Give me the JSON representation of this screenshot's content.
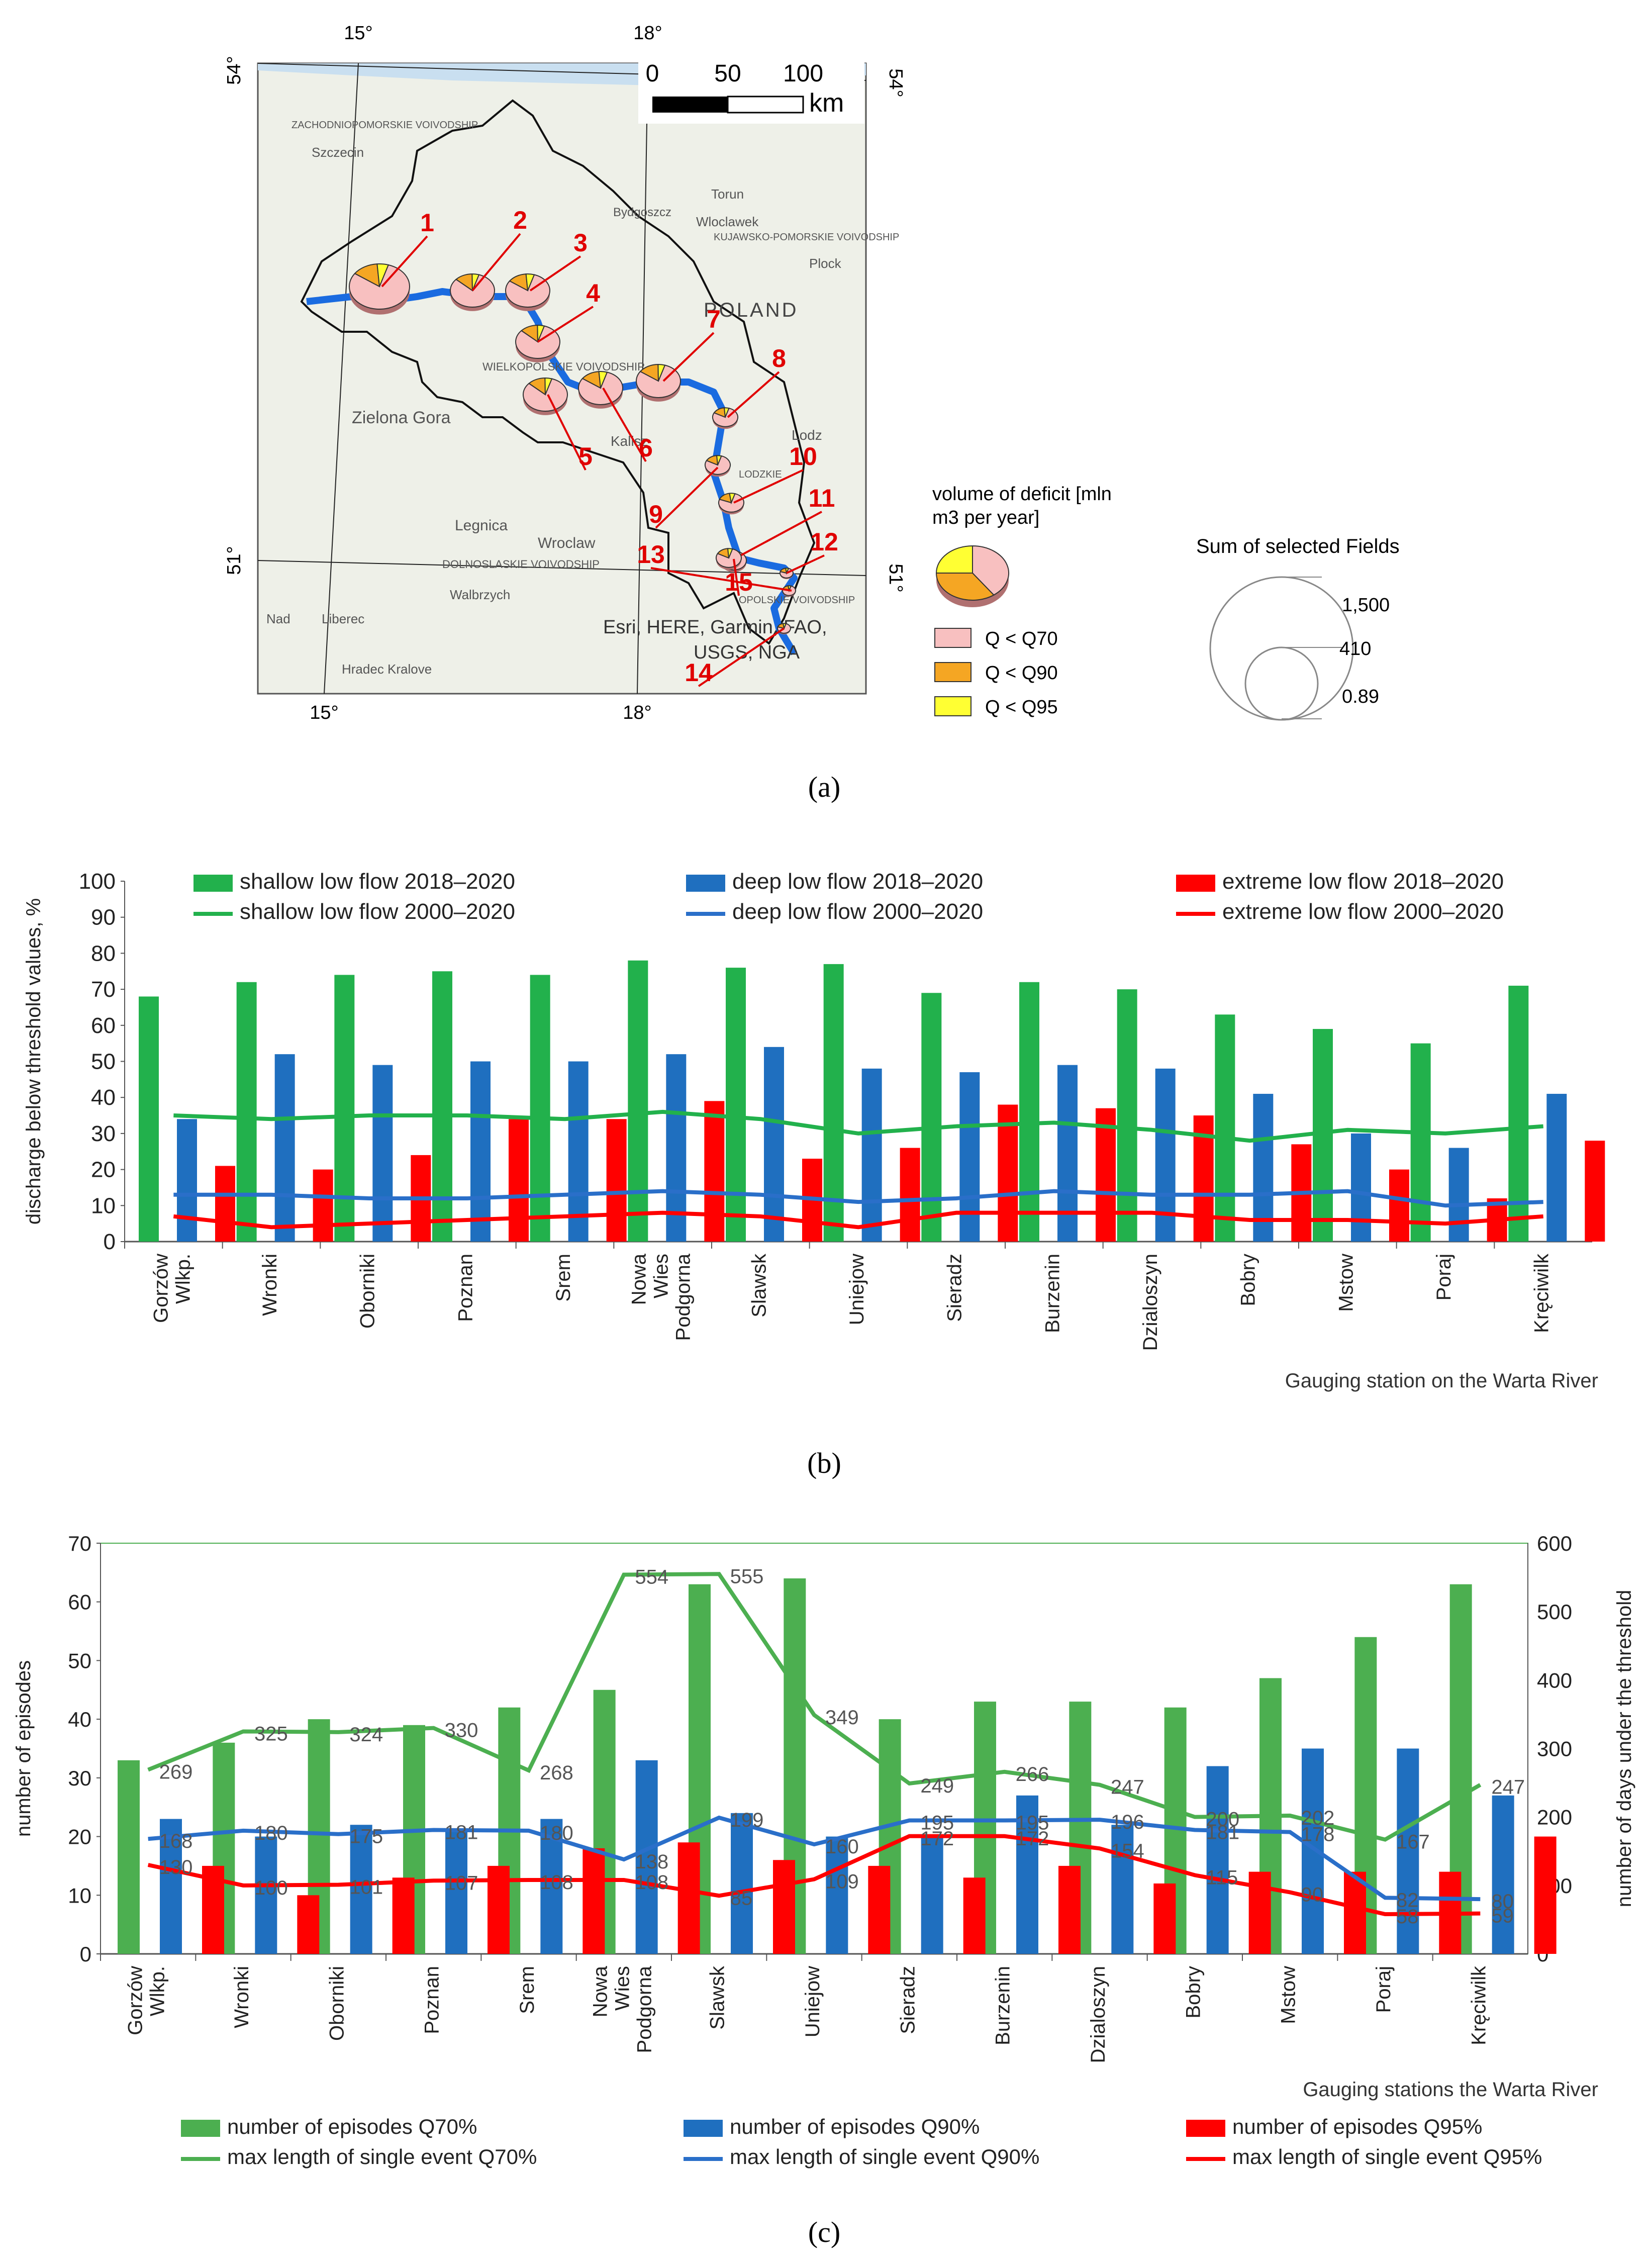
{
  "map": {
    "top_lon": [
      "15°",
      "18°"
    ],
    "bottom_lon": [
      "15°",
      "18°"
    ],
    "lat_left": [
      "54°",
      "51°"
    ],
    "lat_right": [
      "54°",
      "51°"
    ],
    "scale_ticks": [
      "0",
      "50",
      "100"
    ],
    "scale_unit": "km",
    "country_label": "POLAND",
    "attribution_line1": "Esri, HERE, Garmin, FAO,",
    "attribution_line2": "USGS, NGA",
    "place_labels": [
      "Szczecin",
      "Zielona Gora",
      "Legnica",
      "Wroclaw",
      "Walbrzych",
      "Liberec",
      "Hradec Kralove",
      "Kalisz",
      "Torun",
      "Wloclawek",
      "Plock",
      "Lodz",
      "Bydgoszcz",
      "ZACHODNIOPOMORSKIE VOIVODSHIP",
      "KUJAWSKO-POMORSKIE VOIVODSHIP",
      "WIELKOPOLSKIE VOIVODSHIP",
      "LODZKIE",
      "DOLNOSLASKIE VOIVODSHIP",
      "OPOLSKIE VOIVODSHIP",
      "Nad",
      "Liberec"
    ],
    "stations": [
      {
        "id": "1",
        "deficit_share": [
          0.8,
          0.14,
          0.06
        ],
        "size": "large"
      },
      {
        "id": "2",
        "deficit_share": [
          0.82,
          0.13,
          0.05
        ],
        "size": "medium"
      },
      {
        "id": "3",
        "deficit_share": [
          0.8,
          0.14,
          0.06
        ],
        "size": "medium"
      },
      {
        "id": "4",
        "deficit_share": [
          0.82,
          0.13,
          0.05
        ],
        "size": "medium"
      },
      {
        "id": "5",
        "deficit_share": [
          0.82,
          0.13,
          0.05
        ],
        "size": "medium"
      },
      {
        "id": "6",
        "deficit_share": [
          0.8,
          0.14,
          0.06
        ],
        "size": "medium"
      },
      {
        "id": "7",
        "deficit_share": [
          0.8,
          0.15,
          0.05
        ],
        "size": "medium"
      },
      {
        "id": "8",
        "deficit_share": [
          0.78,
          0.16,
          0.06
        ],
        "size": "small"
      },
      {
        "id": "9",
        "deficit_share": [
          0.78,
          0.16,
          0.06
        ],
        "size": "small"
      },
      {
        "id": "10",
        "deficit_share": [
          0.76,
          0.17,
          0.07
        ],
        "size": "small"
      },
      {
        "id": "11",
        "deficit_share": [
          0.78,
          0.16,
          0.06
        ],
        "size": "small"
      },
      {
        "id": "12",
        "deficit_share": [
          0.75,
          0.18,
          0.07
        ],
        "size": "tiny"
      },
      {
        "id": "13",
        "deficit_share": [
          0.75,
          0.18,
          0.07
        ],
        "size": "tiny"
      },
      {
        "id": "14",
        "deficit_share": [
          0.75,
          0.18,
          0.07
        ],
        "size": "tiny"
      },
      {
        "id": "15",
        "deficit_share": [
          0.78,
          0.16,
          0.06
        ],
        "size": "small"
      }
    ],
    "legend": {
      "title_line1": "volume of deficit [mln",
      "title_line2": "m3 per year]",
      "items": [
        {
          "label": "Q < Q70",
          "color": "#f8c0c0"
        },
        {
          "label": "Q < Q90",
          "color": "#f5a623"
        },
        {
          "label": "Q < Q95",
          "color": "#ffff33"
        }
      ],
      "sum_title": "Sum of selected Fields",
      "sum_values": [
        "1,500",
        "410",
        "0.89"
      ]
    }
  },
  "chart_data": [
    {
      "id": "b",
      "type": "bar",
      "ylabel": "discharge below threshold values, %",
      "xlabel": "Gauging station on the Warta River",
      "ylim": [
        0,
        100
      ],
      "yticks": [
        0,
        10,
        20,
        30,
        40,
        50,
        60,
        70,
        80,
        90,
        100
      ],
      "categories": [
        "Gorzów Wlkp.",
        "Wronki",
        "Oborniki",
        "Poznan",
        "Srem",
        "Nowa Wies Podgorna",
        "Slawsk",
        "Uniejow",
        "Sieradz",
        "Burzenin",
        "Dzialoszyn",
        "Bobry",
        "Mstow",
        "Poraj",
        "Kręciwilk"
      ],
      "series": [
        {
          "name": "shallow low flow 2018–2020",
          "kind": "bar",
          "color": "#22b14c",
          "values": [
            68,
            72,
            74,
            75,
            74,
            78,
            76,
            77,
            69,
            72,
            70,
            63,
            59,
            55,
            71
          ]
        },
        {
          "name": "deep low flow 2018–2020",
          "kind": "bar",
          "color": "#1f6fbf",
          "values": [
            34,
            52,
            49,
            50,
            50,
            52,
            54,
            48,
            47,
            49,
            48,
            41,
            30,
            26,
            41
          ]
        },
        {
          "name": "extreme low flow 2018–2020",
          "kind": "bar",
          "color": "#ff0000",
          "values": [
            21,
            20,
            24,
            34,
            34,
            39,
            23,
            26,
            38,
            37,
            35,
            27,
            20,
            12,
            28
          ]
        },
        {
          "name": "shallow low flow 2000–2020",
          "kind": "line",
          "color": "#22b14c",
          "values": [
            35,
            34,
            35,
            35,
            34,
            36,
            34,
            30,
            32,
            33,
            31,
            28,
            31,
            30,
            32
          ]
        },
        {
          "name": "deep low flow 2000–2020",
          "kind": "line",
          "color": "#2a6fc9",
          "values": [
            13,
            13,
            12,
            12,
            13,
            14,
            13,
            11,
            12,
            14,
            13,
            13,
            14,
            10,
            11
          ]
        },
        {
          "name": "extreme low flow 2000–2020",
          "kind": "line",
          "color": "#ff0000",
          "values": [
            7,
            4,
            5,
            6,
            7,
            8,
            7,
            4,
            8,
            8,
            8,
            6,
            6,
            5,
            7
          ]
        }
      ]
    },
    {
      "id": "c",
      "type": "bar",
      "ylabel": "number of episodes",
      "y2label": "number of days under the threshold",
      "xlabel": "Gauging stations the Warta River",
      "ylim": [
        0,
        70
      ],
      "y2lim": [
        0,
        600
      ],
      "yticks": [
        0,
        10,
        20,
        30,
        40,
        50,
        60,
        70
      ],
      "y2ticks": [
        0,
        100,
        200,
        300,
        400,
        500,
        600
      ],
      "categories": [
        "Gorzów Wlkp.",
        "Wronki",
        "Oborniki",
        "Poznan",
        "Srem",
        "Nowa Wies Podgorna",
        "Slawsk",
        "Uniejow",
        "Sieradz",
        "Burzenin",
        "Dzialoszyn",
        "Bobry",
        "Mstow",
        "Poraj",
        "Kręciwilk"
      ],
      "series": [
        {
          "name": "number of episodes Q70%",
          "kind": "bar",
          "color": "#4caf50",
          "values": [
            33,
            36,
            40,
            39,
            42,
            45,
            63,
            64,
            40,
            43,
            43,
            42,
            47,
            54,
            63
          ]
        },
        {
          "name": "number of episodes Q90%",
          "kind": "bar",
          "color": "#1f6fbf",
          "values": [
            23,
            20,
            22,
            21,
            23,
            33,
            24,
            20,
            20,
            27,
            22,
            32,
            35,
            35,
            27
          ]
        },
        {
          "name": "number of episodes Q95%",
          "kind": "bar",
          "color": "#ff0000",
          "values": [
            15,
            10,
            13,
            15,
            18,
            19,
            16,
            15,
            13,
            15,
            12,
            14,
            14,
            14,
            20
          ]
        },
        {
          "name": "max length of single event Q70%",
          "kind": "line",
          "axis": "right",
          "color": "#4caf50",
          "values": [
            269,
            325,
            324,
            330,
            268,
            554,
            555,
            349,
            249,
            266,
            247,
            200,
            202,
            167,
            247
          ],
          "labels": [
            "269",
            "325",
            "324",
            "330",
            "268",
            "554",
            "555",
            "349",
            "249",
            "266",
            "247",
            "200",
            "202",
            "167",
            "247"
          ]
        },
        {
          "name": "max length of single event Q90%",
          "kind": "line",
          "axis": "right",
          "color": "#2a6fc9",
          "values": [
            168,
            180,
            175,
            181,
            180,
            138,
            199,
            160,
            195,
            195,
            196,
            181,
            178,
            82,
            80
          ],
          "labels": [
            "168",
            "180",
            "175",
            "181",
            "180",
            "138",
            "199",
            "160",
            "195",
            "195",
            "196",
            "181",
            "178",
            "82",
            "80"
          ]
        },
        {
          "name": "max length of single event Q95%",
          "kind": "line",
          "axis": "right",
          "color": "#ff0000",
          "values": [
            130,
            100,
            101,
            107,
            108,
            108,
            85,
            109,
            172,
            172,
            154,
            115,
            90,
            58,
            59
          ],
          "labels": [
            "130",
            "100",
            "101",
            "107",
            "108",
            "108",
            "85",
            "109",
            "172",
            "172",
            "154",
            "115",
            "90",
            "58",
            "59"
          ]
        }
      ]
    }
  ],
  "captions": {
    "a": "(a)",
    "b": "(b)",
    "c": "(c)"
  }
}
